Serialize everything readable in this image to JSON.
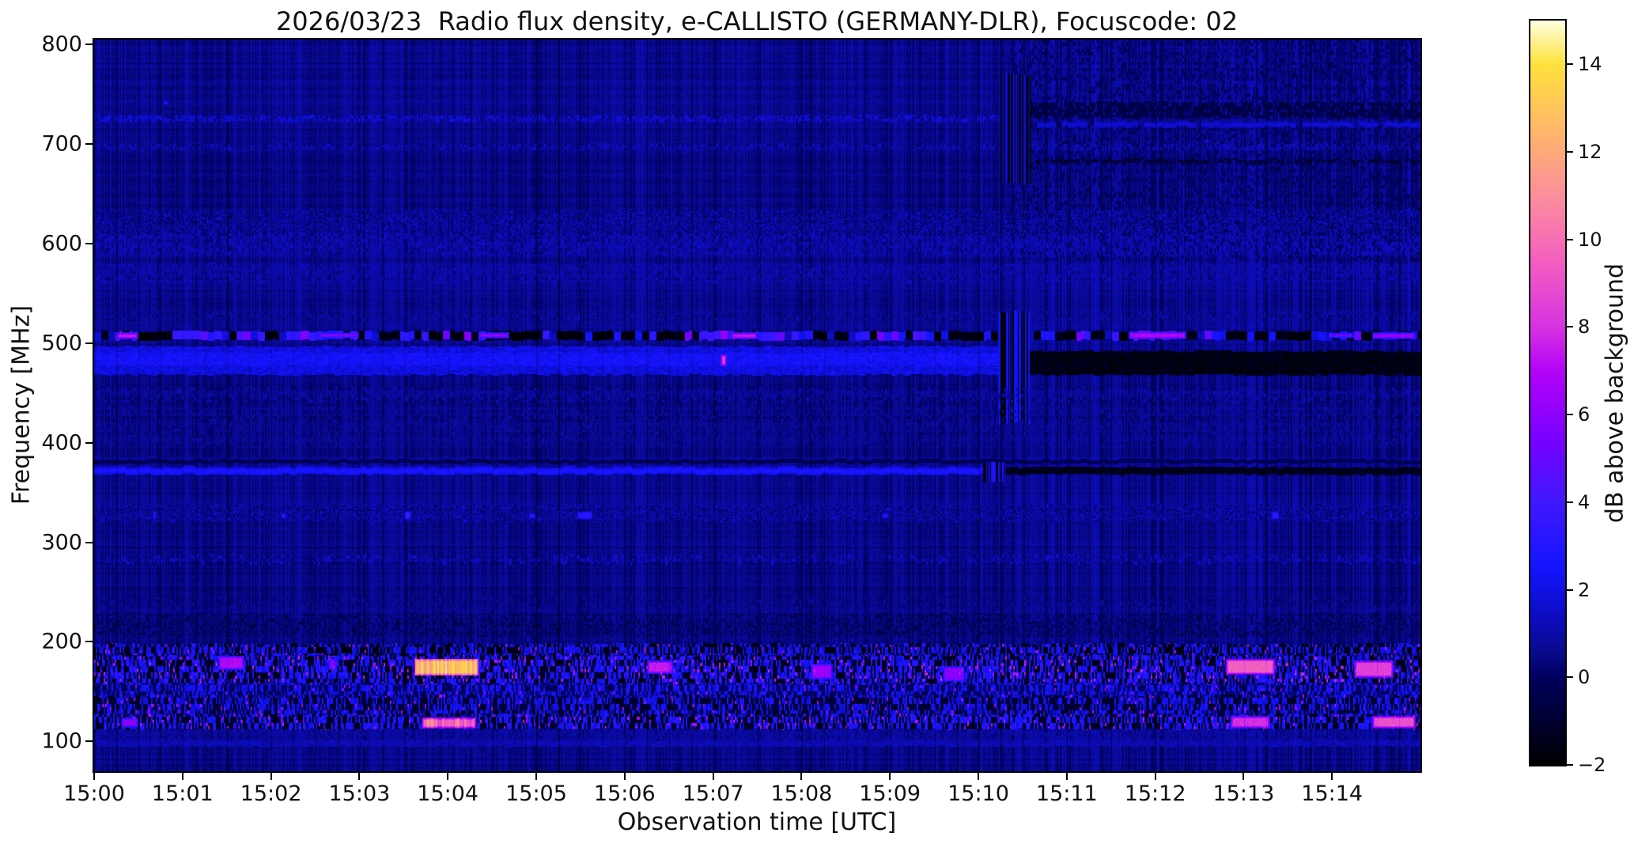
{
  "title": "2026/03/23  Radio flux density, e-CALLISTO (GERMANY-DLR), Focuscode: 02",
  "chart_data": {
    "type": "heatmap",
    "title": "2026/03/23  Radio flux density, e-CALLISTO (GERMANY-DLR), Focuscode: 02",
    "xlabel": "Observation time [UTC]",
    "ylabel": "Frequency [MHz]",
    "x_ticks": [
      "15:00",
      "15:01",
      "15:02",
      "15:03",
      "15:04",
      "15:05",
      "15:06",
      "15:07",
      "15:08",
      "15:09",
      "15:10",
      "15:11",
      "15:12",
      "15:13",
      "15:14"
    ],
    "x_tick_minutes": [
      0,
      1,
      2,
      3,
      4,
      5,
      6,
      7,
      8,
      9,
      10,
      11,
      12,
      13,
      14
    ],
    "x_range_minutes": [
      0,
      15
    ],
    "y_ticks": [
      800,
      700,
      600,
      500,
      400,
      300,
      200,
      100
    ],
    "y_range_mhz": [
      70,
      805
    ],
    "grid": false,
    "colorbar": {
      "label": "dB above background",
      "tick_values": [
        14,
        12,
        10,
        8,
        6,
        4,
        2,
        0,
        -2
      ],
      "tick_labels": [
        "14",
        "12",
        "10",
        "8",
        "6",
        "4",
        "2",
        "0",
        "−2"
      ],
      "range_db": [
        -2,
        15
      ],
      "side": "right"
    },
    "background_db": 0.55,
    "colormap_stops": [
      [
        -2.0,
        "#000000"
      ],
      [
        -1.0,
        "#000030"
      ],
      [
        0.0,
        "#00005e"
      ],
      [
        0.6,
        "#0a0a90"
      ],
      [
        1.5,
        "#0d0dc8"
      ],
      [
        2.5,
        "#1414ff"
      ],
      [
        4.0,
        "#4018ff"
      ],
      [
        5.5,
        "#7a00ff"
      ],
      [
        7.0,
        "#b303f7"
      ],
      [
        8.0,
        "#d633e0"
      ],
      [
        9.5,
        "#f45fc0"
      ],
      [
        11.0,
        "#fb8e9b"
      ],
      [
        12.5,
        "#ffb76a"
      ],
      [
        14.0,
        "#ffe13c"
      ],
      [
        15.0,
        "#ffffe0"
      ]
    ],
    "features": {
      "bands": [
        {
          "f": [
            583,
            805
          ],
          "t": [
            10.35,
            15
          ],
          "mode": "speckle",
          "v": [
            -0.9,
            0.6
          ],
          "p": 0.25
        },
        {
          "f": [
            722,
            729
          ],
          "t": [
            0,
            10.4
          ],
          "mode": "speckle",
          "v": [
            1.2,
            2.2
          ],
          "p": 0.55
        },
        {
          "f": [
            726,
            742
          ],
          "t": [
            10.4,
            15
          ],
          "mode": "speckle",
          "v": [
            -1.2,
            0.2
          ],
          "p": 0.7
        },
        {
          "f": [
            717,
            723
          ],
          "t": [
            10.4,
            15
          ],
          "mode": "line",
          "v": 2.0,
          "p": 0.85
        },
        {
          "f": [
            694,
            700
          ],
          "t": [
            0,
            15
          ],
          "mode": "speckle",
          "v": [
            0.9,
            1.7
          ],
          "p": 0.4
        },
        {
          "f": [
            680,
            685
          ],
          "t": [
            10.4,
            15
          ],
          "mode": "speckle",
          "v": [
            -1.4,
            -0.2
          ],
          "p": 0.6
        },
        {
          "f": [
            610,
            634
          ],
          "t": [
            0,
            15
          ],
          "mode": "speckle",
          "v": [
            -0.6,
            2.3
          ],
          "p": 0.55
        },
        {
          "f": [
            588,
            610
          ],
          "t": [
            0,
            15
          ],
          "mode": "speckle",
          "v": [
            0.6,
            1.9
          ],
          "p": 0.45
        },
        {
          "f": [
            560,
            580
          ],
          "t": [
            0,
            15
          ],
          "mode": "speckle",
          "v": [
            0.5,
            1.8
          ],
          "p": 0.4
        },
        {
          "f": [
            522,
            532
          ],
          "t": [
            0,
            15
          ],
          "mode": "speckle",
          "v": [
            0.4,
            1.5
          ],
          "p": 0.35
        },
        {
          "f": [
            503,
            512
          ],
          "t": [
            0,
            15
          ],
          "mode": "segments"
        },
        {
          "f": [
            468,
            497
          ],
          "t": [
            0,
            10.55
          ],
          "mode": "fill",
          "v": [
            1.4,
            2.5
          ]
        },
        {
          "f": [
            478,
            490
          ],
          "t": [
            0,
            10.55
          ],
          "mode": "fill",
          "v": [
            2.0,
            2.9
          ]
        },
        {
          "f": [
            468,
            492
          ],
          "t": [
            10.55,
            15
          ],
          "mode": "fill",
          "v": [
            -2,
            -1.1
          ]
        },
        {
          "f": [
            420,
            532
          ],
          "t": [
            10.22,
            10.58
          ],
          "mode": "vstripes",
          "v": [
            -1.9,
            2.4
          ],
          "p": 0.5
        },
        {
          "f": [
            660,
            770
          ],
          "t": [
            10.25,
            10.6
          ],
          "mode": "vstripes",
          "v": [
            -1.5,
            1.8
          ],
          "p": 0.45
        },
        {
          "f": [
            440,
            455
          ],
          "t": [
            0,
            15
          ],
          "mode": "speckle",
          "v": [
            0.5,
            1.4
          ],
          "p": 0.35
        },
        {
          "f": [
            396,
            436
          ],
          "t": [
            0,
            15
          ],
          "mode": "speckle",
          "v": [
            0.4,
            1.2
          ],
          "p": 0.3
        },
        {
          "f": [
            379,
            383
          ],
          "t": [
            0,
            15
          ],
          "mode": "fill",
          "v": [
            -0.6,
            0.2
          ]
        },
        {
          "f": [
            368,
            376
          ],
          "t": [
            0,
            10.05
          ],
          "mode": "line",
          "v": 3.0
        },
        {
          "f": [
            368,
            375
          ],
          "t": [
            10.3,
            15
          ],
          "mode": "fill",
          "v": [
            -1.8,
            -1.0
          ]
        },
        {
          "f": [
            360,
            380
          ],
          "t": [
            10.05,
            10.3
          ],
          "mode": "vstripes",
          "v": [
            -1.7,
            2.8
          ],
          "p": 0.5
        },
        {
          "f": [
            320,
            338
          ],
          "t": [
            0,
            15
          ],
          "mode": "speckle",
          "v": [
            -0.8,
            2.4
          ],
          "p": 0.5
        },
        {
          "f": [
            278,
            288
          ],
          "t": [
            0,
            15
          ],
          "mode": "speckle",
          "v": [
            1.0,
            2.0
          ],
          "p": 0.25
        },
        {
          "f": [
            230,
            246
          ],
          "t": [
            0,
            15
          ],
          "mode": "speckle",
          "v": [
            0.3,
            1.1
          ],
          "p": 0.3
        },
        {
          "f": [
            205,
            228
          ],
          "t": [
            0,
            15
          ],
          "mode": "speckle",
          "v": [
            -1.4,
            1.2
          ],
          "p": 0.45
        },
        {
          "f": [
            186,
            198
          ],
          "t": [
            0,
            15
          ],
          "mode": "busy",
          "base": [
            -2,
            -1
          ],
          "dash": {
            "p": 0.5,
            "v": [
              1.2,
              3.2
            ]
          },
          "spark": {
            "p": 0.03,
            "v": [
              5,
              8
            ]
          }
        },
        {
          "f": [
            158,
            186
          ],
          "t": [
            0,
            15
          ],
          "mode": "busy",
          "base": [
            -2,
            -0.6
          ],
          "dash": {
            "p": 0.55,
            "v": [
              1.5,
              3.8
            ]
          },
          "spark": {
            "p": 0.05,
            "v": [
              5,
              9
            ]
          }
        },
        {
          "f": [
            146,
            158
          ],
          "t": [
            0,
            15
          ],
          "mode": "busy",
          "base": [
            -0.8,
            0.6
          ],
          "dash": {
            "p": 0.5,
            "v": [
              1.5,
              3.2
            ]
          },
          "spark": {
            "p": 0.02,
            "v": [
              5,
              7
            ]
          }
        },
        {
          "f": [
            127,
            146
          ],
          "t": [
            0,
            15
          ],
          "mode": "busy",
          "base": [
            -1.6,
            -0.2
          ],
          "dash": {
            "p": 0.5,
            "v": [
              1.2,
              3.2
            ]
          },
          "spark": {
            "p": 0.03,
            "v": [
              5,
              8
            ]
          }
        },
        {
          "f": [
            112,
            127
          ],
          "t": [
            0,
            15
          ],
          "mode": "busy",
          "base": [
            -1.8,
            -0.6
          ],
          "dash": {
            "p": 0.5,
            "v": [
              1.8,
              3.6
            ]
          },
          "spark": {
            "p": 0.05,
            "v": [
              5,
              8.5
            ]
          }
        },
        {
          "f": [
            96,
            112
          ],
          "t": [
            0,
            15
          ],
          "mode": "speckle",
          "v": [
            0.4,
            1.5
          ],
          "p": 0.4
        },
        {
          "f": [
            95,
            101
          ],
          "t": [
            0,
            15
          ],
          "mode": "fill",
          "v": [
            0.8,
            1.5
          ]
        }
      ],
      "blobs": [
        {
          "t": [
            3.62,
            4.35
          ],
          "f": [
            166,
            183
          ],
          "v": 14.6,
          "striped": true
        },
        {
          "t": [
            3.7,
            4.32
          ],
          "f": [
            113,
            124
          ],
          "v": 11.5,
          "striped": true
        },
        {
          "t": [
            0.25,
            0.5
          ],
          "f": [
            504,
            511
          ],
          "v": 7.5
        },
        {
          "t": [
            2.55,
            3.0
          ],
          "f": [
            505,
            511
          ],
          "v": 6.0
        },
        {
          "t": [
            4.35,
            4.7
          ],
          "f": [
            505,
            511
          ],
          "v": 6.5
        },
        {
          "t": [
            7.2,
            7.5
          ],
          "f": [
            504,
            511
          ],
          "v": 7.5
        },
        {
          "t": [
            11.7,
            12.35
          ],
          "f": [
            504,
            512
          ],
          "v": 7.0
        },
        {
          "t": [
            13.95,
            14.25
          ],
          "f": [
            505,
            511
          ],
          "v": 5.5
        },
        {
          "t": [
            14.45,
            14.95
          ],
          "f": [
            504,
            511
          ],
          "v": 6.5
        },
        {
          "t": [
            7.08,
            7.16
          ],
          "f": [
            477,
            489
          ],
          "v": 9.0
        },
        {
          "t": [
            0.77,
            0.85
          ],
          "f": [
            738,
            745
          ],
          "v": 3.5
        },
        {
          "t": [
            12.55,
            12.62
          ],
          "f": [
            700,
            706
          ],
          "v": 3.2
        },
        {
          "t": [
            0.65,
            0.72
          ],
          "f": [
            322,
            332
          ],
          "v": 3.6
        },
        {
          "t": [
            2.1,
            2.18
          ],
          "f": [
            323,
            331
          ],
          "v": 3.4
        },
        {
          "t": [
            3.5,
            3.6
          ],
          "f": [
            322,
            332
          ],
          "v": 3.8
        },
        {
          "t": [
            4.9,
            5.0
          ],
          "f": [
            323,
            331
          ],
          "v": 3.2
        },
        {
          "t": [
            5.45,
            5.65
          ],
          "f": [
            322,
            332
          ],
          "v": 3.2
        },
        {
          "t": [
            8.9,
            9.0
          ],
          "f": [
            323,
            331
          ],
          "v": 3.0
        },
        {
          "t": [
            13.3,
            13.42
          ],
          "f": [
            322,
            332
          ],
          "v": 3.4
        },
        {
          "t": [
            1.4,
            1.7
          ],
          "f": [
            172,
            186
          ],
          "v": 7.0
        },
        {
          "t": [
            2.65,
            2.75
          ],
          "f": [
            172,
            184
          ],
          "v": 6.0
        },
        {
          "t": [
            6.25,
            6.55
          ],
          "f": [
            168,
            181
          ],
          "v": 7.5
        },
        {
          "t": [
            8.1,
            8.35
          ],
          "f": [
            162,
            178
          ],
          "v": 6.5
        },
        {
          "t": [
            9.6,
            9.85
          ],
          "f": [
            160,
            176
          ],
          "v": 6.0
        },
        {
          "t": [
            12.8,
            13.35
          ],
          "f": [
            167,
            183
          ],
          "v": 9.5
        },
        {
          "t": [
            14.25,
            14.7
          ],
          "f": [
            164,
            181
          ],
          "v": 8.5
        },
        {
          "t": [
            0.3,
            0.5
          ],
          "f": [
            114,
            124
          ],
          "v": 6.0
        },
        {
          "t": [
            12.85,
            13.3
          ],
          "f": [
            113,
            126
          ],
          "v": 8.0
        },
        {
          "t": [
            14.45,
            14.95
          ],
          "f": [
            113,
            126
          ],
          "v": 9.0
        }
      ]
    }
  }
}
